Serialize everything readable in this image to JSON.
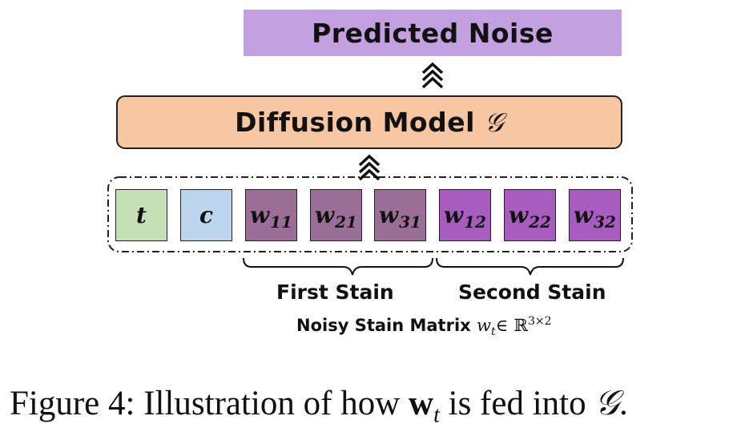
{
  "predicted_noise": "Predicted Noise",
  "model": {
    "label": "Diffusion Model",
    "symbol": "𝒢"
  },
  "inputs": {
    "t": {
      "main": "t",
      "sub": "",
      "color": "#c5e0b4"
    },
    "c": {
      "main": "c",
      "sub": "",
      "color": "#bcd5ed"
    },
    "w11": {
      "main": "w",
      "sub": "11",
      "color": "#9b6e97"
    },
    "w21": {
      "main": "w",
      "sub": "21",
      "color": "#9b6e97"
    },
    "w31": {
      "main": "w",
      "sub": "31",
      "color": "#9b6e97"
    },
    "w12": {
      "main": "w",
      "sub": "12",
      "color": "#a95cc0"
    },
    "w22": {
      "main": "w",
      "sub": "22",
      "color": "#a95cc0"
    },
    "w32": {
      "main": "w",
      "sub": "32",
      "color": "#a95cc0"
    }
  },
  "braces": {
    "first": "First Stain",
    "second": "Second Stain"
  },
  "matrix_label": {
    "text": "Noisy Stain Matrix",
    "w": "w",
    "w_sub": "t",
    "in": "∈",
    "space": "ℝ",
    "dim": "3×2"
  },
  "caption": {
    "prefix": "Figure 4: Illustration of how",
    "w": "w",
    "w_sub": "t",
    "middle": "is fed into",
    "symbol": "𝒢",
    "end": "."
  },
  "colors": {
    "predicted_bg": "#c3a0e0",
    "model_bg": "#f7c6a2",
    "first_stain": "#9b6e97",
    "second_stain": "#a95cc0"
  }
}
